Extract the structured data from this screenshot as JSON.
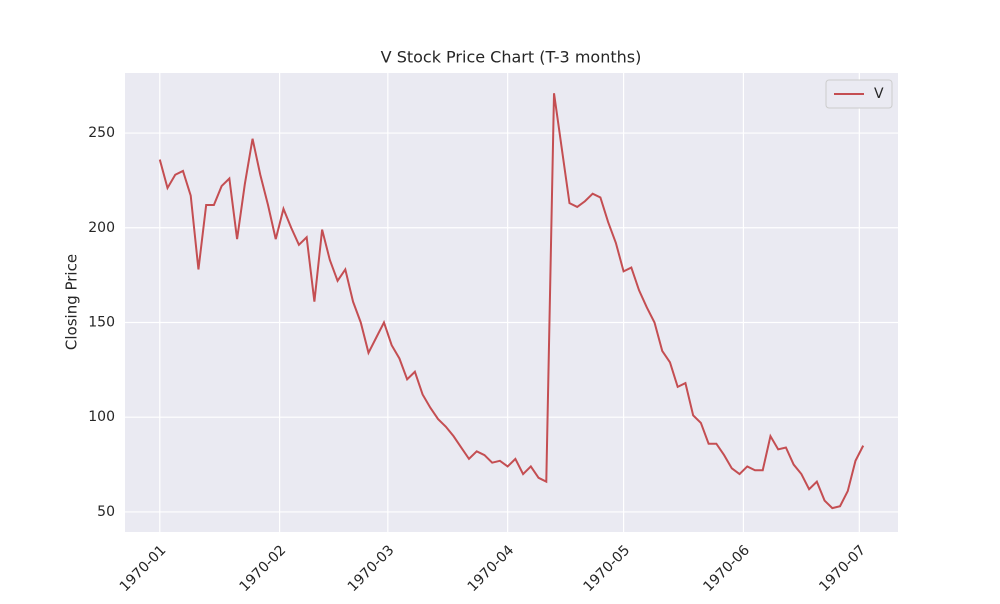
{
  "chart_data": {
    "type": "line",
    "title": "V Stock Price Chart (T-3 months)",
    "y_label": "Closing Price",
    "x": [
      "1970-01-01",
      "1970-01-03",
      "1970-01-05",
      "1970-01-07",
      "1970-01-09",
      "1970-01-11",
      "1970-01-13",
      "1970-01-15",
      "1970-01-17",
      "1970-01-19",
      "1970-01-21",
      "1970-01-23",
      "1970-01-25",
      "1970-01-27",
      "1970-01-29",
      "1970-01-31",
      "1970-02-02",
      "1970-02-04",
      "1970-02-06",
      "1970-02-08",
      "1970-02-10",
      "1970-02-12",
      "1970-02-14",
      "1970-02-16",
      "1970-02-18",
      "1970-02-20",
      "1970-02-22",
      "1970-02-24",
      "1970-02-26",
      "1970-02-28",
      "1970-03-02",
      "1970-03-04",
      "1970-03-06",
      "1970-03-08",
      "1970-03-10",
      "1970-03-12",
      "1970-03-14",
      "1970-03-16",
      "1970-03-18",
      "1970-03-20",
      "1970-03-22",
      "1970-03-24",
      "1970-03-26",
      "1970-03-28",
      "1970-03-30",
      "1970-04-01",
      "1970-04-03",
      "1970-04-05",
      "1970-04-07",
      "1970-04-09",
      "1970-04-11",
      "1970-04-13",
      "1970-04-15",
      "1970-04-17",
      "1970-04-19",
      "1970-04-21",
      "1970-04-23",
      "1970-04-25",
      "1970-04-27",
      "1970-04-29",
      "1970-05-01",
      "1970-05-03",
      "1970-05-05",
      "1970-05-07",
      "1970-05-09",
      "1970-05-11",
      "1970-05-13",
      "1970-05-15",
      "1970-05-17",
      "1970-05-19",
      "1970-05-21",
      "1970-05-23",
      "1970-05-25",
      "1970-05-27",
      "1970-05-29",
      "1970-05-31",
      "1970-06-02",
      "1970-06-04",
      "1970-06-06",
      "1970-06-08",
      "1970-06-10",
      "1970-06-12",
      "1970-06-14",
      "1970-06-16",
      "1970-06-18",
      "1970-06-20",
      "1970-06-22",
      "1970-06-24",
      "1970-06-26",
      "1970-06-28",
      "1970-06-30",
      "1970-07-02"
    ],
    "series": [
      {
        "name": "V",
        "color": "#c44e52",
        "values": [
          236,
          221,
          228,
          230,
          217,
          178,
          212,
          212,
          222,
          226,
          194,
          223,
          247,
          228,
          212,
          194,
          210,
          200,
          191,
          195,
          161,
          199,
          183,
          172,
          178,
          161,
          150,
          134,
          142,
          150,
          138,
          131,
          120,
          124,
          112,
          105,
          99,
          95,
          90,
          84,
          78,
          82,
          80,
          76,
          77,
          74,
          78,
          70,
          74,
          68,
          66,
          271,
          242,
          213,
          211,
          214,
          218,
          216,
          203,
          192,
          177,
          179,
          167,
          158,
          150,
          135,
          129,
          116,
          118,
          101,
          97,
          86,
          86,
          80,
          73,
          70,
          74,
          72,
          72,
          90,
          83,
          84,
          75,
          70,
          62,
          66,
          56,
          52,
          53,
          61,
          77,
          85
        ]
      }
    ],
    "xlim": [
      "1969-12-23",
      "1970-07-11"
    ],
    "xticks": [
      "1970-01",
      "1970-02",
      "1970-03",
      "1970-04",
      "1970-05",
      "1970-06",
      "1970-07"
    ],
    "ylim": [
      39.4,
      281.7
    ],
    "yticks": [
      50,
      100,
      150,
      200,
      250
    ],
    "grid": true,
    "legend": "upper right"
  }
}
